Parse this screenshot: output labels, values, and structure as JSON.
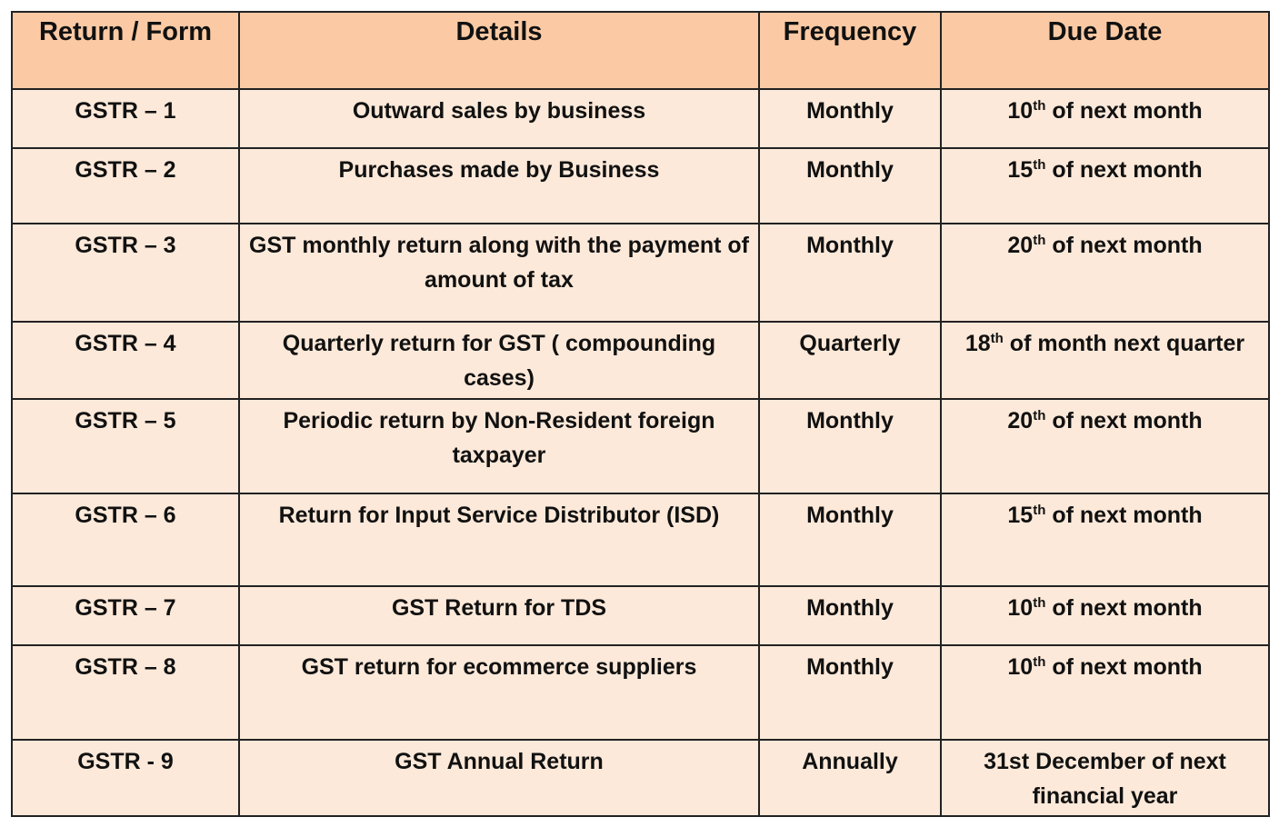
{
  "table": {
    "header": [
      "Return / Form",
      "Details",
      "Frequency",
      "Due Date"
    ],
    "rows": [
      [
        "GSTR – 1",
        "Outward sales by business",
        "Monthly",
        {
          "day": "10",
          "suffix": "th",
          "text": "of next month"
        }
      ],
      [
        "GSTR – 2",
        "Purchases made by Business",
        "Monthly",
        {
          "day": "15",
          "suffix": "th",
          "text": "of next month"
        }
      ],
      [
        "GSTR – 3",
        "GST monthly return along with the payment of amount of tax",
        "Monthly",
        {
          "day": "20",
          "suffix": "th",
          "text": "of next month"
        }
      ],
      [
        "GSTR – 4",
        "Quarterly return for GST ( compounding cases)",
        "Quarterly",
        {
          "day": "18",
          "suffix": "th",
          "text": "of month next quarter"
        }
      ],
      [
        "GSTR – 5",
        "Periodic return by Non-Resident foreign taxpayer",
        "Monthly",
        {
          "day": "20",
          "suffix": "th",
          "text": "of next month"
        }
      ],
      [
        "GSTR – 6",
        "Return for Input Service Distributor (ISD)",
        "Monthly",
        {
          "day": "15",
          "suffix": "th",
          "text": "of next month"
        }
      ],
      [
        "GSTR – 7",
        "GST Return for TDS",
        "Monthly",
        {
          "day": "10",
          "suffix": "th",
          "text": "of next month"
        }
      ],
      [
        "GSTR – 8",
        "GST return for ecommerce suppliers",
        "Monthly",
        {
          "day": "10",
          "suffix": "th",
          "text": "of next month"
        }
      ],
      [
        "GSTR - 9",
        "GST Annual Return",
        "Annually",
        "31st December of next financial year"
      ]
    ]
  }
}
